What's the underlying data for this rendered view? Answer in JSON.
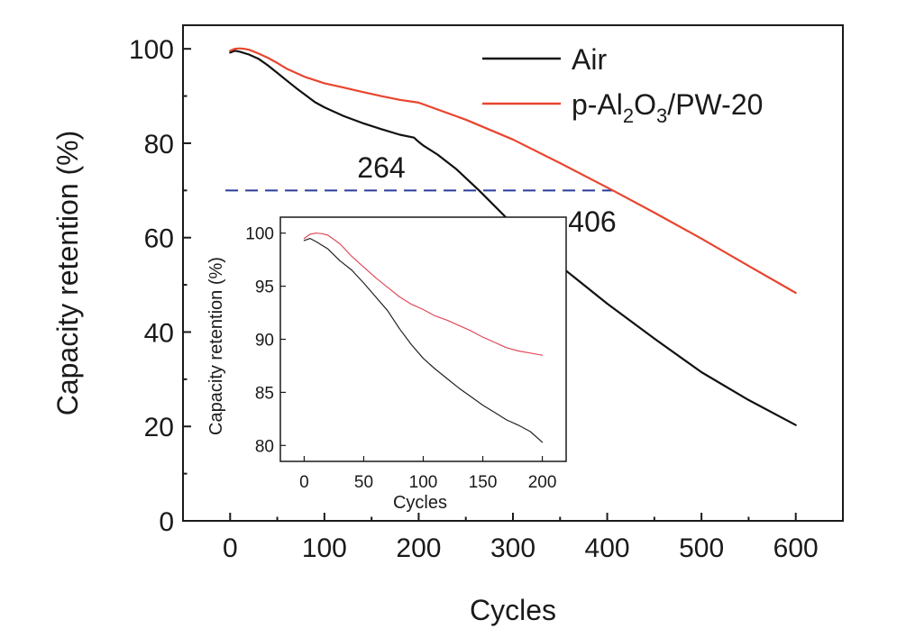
{
  "chart_data": [
    {
      "type": "line",
      "title": "",
      "xlabel": "Cycles",
      "ylabel": "Capacity retention (%)",
      "xlim": [
        -50,
        650
      ],
      "ylim": [
        0,
        105
      ],
      "xticks": [
        0,
        100,
        200,
        300,
        400,
        500,
        600
      ],
      "yticks": [
        0,
        20,
        40,
        60,
        80,
        100
      ],
      "grid": false,
      "legend": "top-right",
      "series": [
        {
          "name": "Air",
          "color": "#111111",
          "x": [
            0,
            5,
            10,
            20,
            30,
            40,
            50,
            60,
            70,
            80,
            90,
            100,
            120,
            140,
            160,
            180,
            195,
            200,
            205,
            220,
            240,
            264,
            300,
            350,
            400,
            450,
            500,
            550,
            600
          ],
          "y": [
            99.2,
            99.6,
            99.4,
            98.8,
            97.9,
            96.5,
            94.9,
            93.3,
            91.7,
            90.2,
            88.7,
            87.6,
            85.8,
            84.3,
            83.0,
            81.8,
            81.2,
            80.3,
            79.5,
            77.6,
            74.5,
            70.0,
            62.8,
            54.0,
            46.0,
            38.6,
            31.5,
            25.6,
            20.3
          ]
        },
        {
          "name": "p-Al2O3/PW-20",
          "color": "#e8452e",
          "x": [
            0,
            5,
            10,
            15,
            20,
            30,
            40,
            50,
            60,
            80,
            100,
            120,
            140,
            160,
            180,
            200,
            250,
            300,
            350,
            406,
            450,
            500,
            550,
            600
          ],
          "y": [
            99.6,
            100.0,
            100.1,
            100.0,
            99.8,
            99.0,
            98.1,
            97.0,
            95.8,
            94.0,
            92.7,
            91.8,
            90.9,
            90.0,
            89.2,
            88.6,
            85.0,
            80.8,
            75.8,
            70.0,
            65.3,
            59.8,
            54.0,
            48.3
          ]
        }
      ],
      "reference_line": {
        "y": 70,
        "x_start": -5,
        "x_end": 406,
        "style": "dashed",
        "color": "#2a3a9a"
      },
      "legend_entries": [
        {
          "label_main": "Air"
        },
        {
          "label_parts": [
            "p-Al",
            "2",
            "O",
            "3",
            "/PW-20"
          ]
        }
      ],
      "annotations": [
        {
          "text": "264",
          "x": 264,
          "y": 70
        },
        {
          "text": "406",
          "x": 406,
          "y": 70
        }
      ]
    },
    {
      "type": "line",
      "title": "",
      "xlabel": "Cycles",
      "ylabel": "Capacity retention (%)",
      "xlim": [
        -20,
        220
      ],
      "ylim": [
        78.5,
        101.5
      ],
      "xticks": [
        0,
        50,
        100,
        150,
        200
      ],
      "yticks": [
        80,
        85,
        90,
        95,
        100
      ],
      "grid": false,
      "series": [
        {
          "name": "Air",
          "color": "#222222",
          "x": [
            0,
            5,
            10,
            20,
            30,
            40,
            50,
            60,
            70,
            80,
            90,
            100,
            110,
            120,
            130,
            140,
            150,
            160,
            170,
            180,
            190,
            200
          ],
          "y": [
            99.3,
            99.5,
            99.2,
            98.5,
            97.4,
            96.5,
            95.3,
            94.0,
            92.7,
            91.0,
            89.5,
            88.2,
            87.2,
            86.3,
            85.4,
            84.6,
            83.8,
            83.1,
            82.4,
            81.9,
            81.3,
            80.3
          ]
        },
        {
          "name": "p-Al2O3/PW-20",
          "color": "#e04a5a",
          "x": [
            0,
            5,
            10,
            15,
            20,
            30,
            40,
            50,
            60,
            70,
            80,
            90,
            100,
            110,
            120,
            130,
            140,
            150,
            160,
            170,
            180,
            190,
            200
          ],
          "y": [
            99.5,
            99.9,
            100.0,
            99.95,
            99.8,
            99.0,
            97.8,
            96.8,
            95.8,
            94.9,
            94.0,
            93.3,
            92.8,
            92.2,
            91.8,
            91.3,
            90.8,
            90.2,
            89.7,
            89.2,
            88.9,
            88.7,
            88.5
          ]
        }
      ]
    }
  ]
}
